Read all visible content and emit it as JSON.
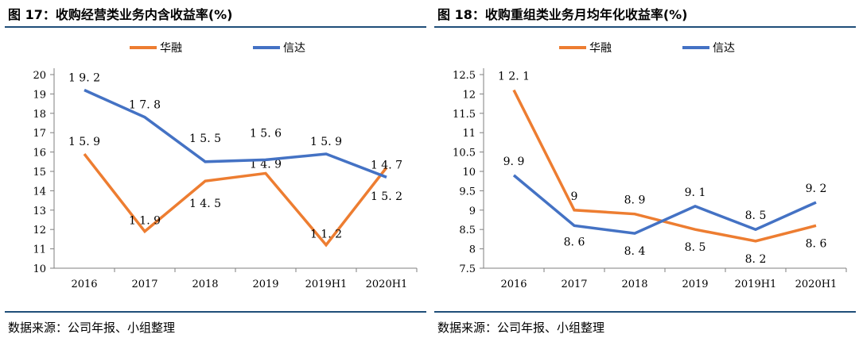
{
  "source_text": "数据来源：公司年报、小组整理",
  "charts": [
    {
      "title": "图 17：收购经营类业务内含收益率(%)",
      "chart_data": {
        "type": "line",
        "title": "图 17：收购经营类业务内含收益率(%)",
        "categories": [
          "2016",
          "2017",
          "2018",
          "2019",
          "2019H1",
          "2020H1"
        ],
        "series": [
          {
            "name": "华融",
            "color": "#ed7d31",
            "values": [
              15.9,
              11.9,
              14.5,
              14.9,
              11.2,
              15.2
            ]
          },
          {
            "name": "信达",
            "color": "#4472c4",
            "values": [
              19.2,
              17.8,
              15.5,
              15.6,
              15.9,
              14.7
            ]
          }
        ],
        "ylim": [
          10,
          20
        ],
        "yticks": [
          "10",
          "11",
          "12",
          "13",
          "14",
          "15",
          "16",
          "17",
          "18",
          "19",
          "20"
        ],
        "grid": false,
        "legend": "top"
      }
    },
    {
      "title": "图 18：收购重组类业务月均年化收益率(%)",
      "chart_data": {
        "type": "line",
        "title": "图 18：收购重组类业务月均年化收益率(%)",
        "categories": [
          "2016",
          "2017",
          "2018",
          "2019",
          "2019H1",
          "2020H1"
        ],
        "series": [
          {
            "name": "华融",
            "color": "#ed7d31",
            "values": [
              12.1,
              9,
              8.9,
              8.5,
              8.2,
              8.6
            ]
          },
          {
            "name": "信达",
            "color": "#4472c4",
            "values": [
              9.9,
              8.6,
              8.4,
              9.1,
              8.5,
              9.2
            ]
          }
        ],
        "ylim": [
          7.5,
          12.5
        ],
        "yticks": [
          "7.5",
          "8",
          "8.5",
          "9",
          "9.5",
          "10",
          "10.5",
          "11",
          "11.5",
          "12",
          "12.5"
        ],
        "grid": false,
        "legend": "top"
      }
    }
  ]
}
